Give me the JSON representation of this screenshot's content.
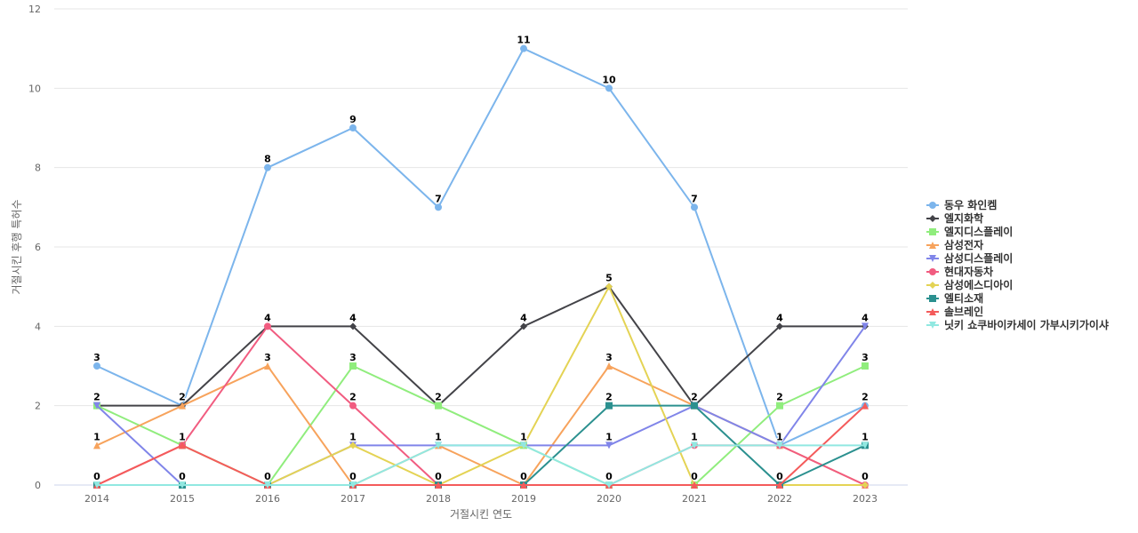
{
  "chart_data": {
    "type": "line",
    "title": "",
    "xlabel": "거절시킨 연도",
    "ylabel": "거절시킨 후행 특허수",
    "categories": [
      "2014",
      "2015",
      "2016",
      "2017",
      "2018",
      "2019",
      "2020",
      "2021",
      "2022",
      "2023"
    ],
    "ylim": [
      0,
      12
    ],
    "yticks": [
      0,
      2,
      4,
      6,
      8,
      10,
      12
    ],
    "grid": true,
    "legend_position": "right",
    "series": [
      {
        "name": "동우 화인켐",
        "color": "#7cb5ec",
        "marker": "circle",
        "values": [
          3,
          2,
          8,
          9,
          7,
          11,
          10,
          7,
          1,
          2
        ]
      },
      {
        "name": "엘지화학",
        "color": "#434348",
        "marker": "diamond",
        "values": [
          2,
          2,
          4,
          4,
          2,
          4,
          5,
          2,
          4,
          4
        ]
      },
      {
        "name": "엘지디스플레이",
        "color": "#90ed7d",
        "marker": "square",
        "values": [
          2,
          1,
          0,
          3,
          2,
          1,
          0,
          0,
          2,
          3
        ]
      },
      {
        "name": "삼성전자",
        "color": "#f7a35c",
        "marker": "triangle",
        "values": [
          1,
          2,
          3,
          0,
          1,
          0,
          3,
          2,
          1,
          0
        ]
      },
      {
        "name": "삼성디스플레이",
        "color": "#8085e9",
        "marker": "triangle-down",
        "values": [
          2,
          0,
          0,
          1,
          1,
          1,
          1,
          2,
          1,
          4
        ]
      },
      {
        "name": "현대자동차",
        "color": "#f15c80",
        "marker": "circle",
        "values": [
          0,
          1,
          4,
          2,
          0,
          0,
          0,
          1,
          1,
          0
        ]
      },
      {
        "name": "삼성에스디아이",
        "color": "#e4d354",
        "marker": "diamond",
        "values": [
          0,
          0,
          0,
          1,
          0,
          1,
          5,
          0,
          0,
          0
        ]
      },
      {
        "name": "엘티소재",
        "color": "#2b908f",
        "marker": "square",
        "values": [
          0,
          0,
          0,
          0,
          0,
          0,
          2,
          2,
          0,
          1
        ]
      },
      {
        "name": "솔브레인",
        "color": "#f45b5b",
        "marker": "triangle",
        "values": [
          0,
          1,
          0,
          0,
          0,
          0,
          0,
          0,
          0,
          2
        ]
      },
      {
        "name": "닛키 쇼쿠바이카세이 가부시키가이샤",
        "color": "#91e8e1",
        "marker": "triangle-down",
        "values": [
          0,
          0,
          0,
          0,
          1,
          1,
          0,
          1,
          1,
          1
        ]
      }
    ]
  }
}
